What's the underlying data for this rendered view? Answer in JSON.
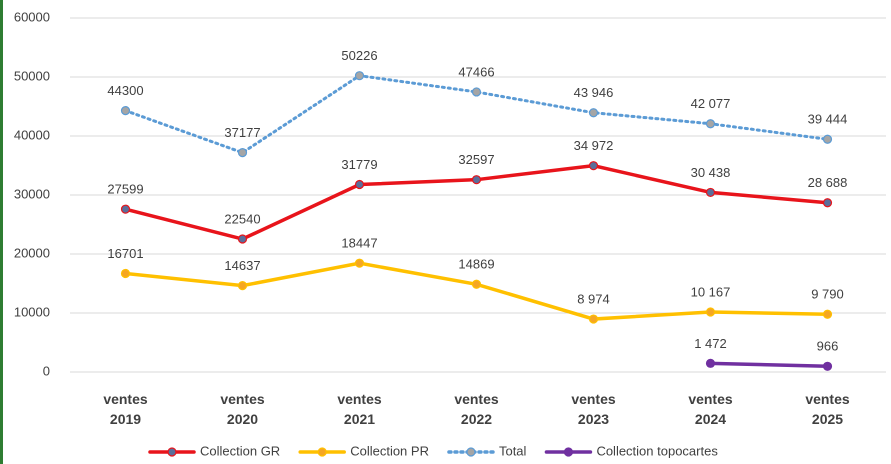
{
  "chart_data": {
    "type": "line",
    "categories": [
      "ventes 2019",
      "ventes 2020",
      "ventes 2021",
      "ventes 2022",
      "ventes 2023",
      "ventes 2024",
      "ventes 2025"
    ],
    "series": [
      {
        "name": "Collection GR",
        "color": "#e8141b",
        "marker_color": "#5b6e9a",
        "dash": "solid",
        "values": [
          27599,
          22540,
          31779,
          32597,
          34972,
          30438,
          28688
        ],
        "value_labels": [
          "27599",
          "22540",
          "31779",
          "32597",
          "34 972",
          "30 438",
          "28 688"
        ]
      },
      {
        "name": "Collection PR",
        "color": "#ffc000",
        "marker_color": "#f5a623",
        "dash": "solid",
        "values": [
          16701,
          14637,
          18447,
          14869,
          8974,
          10167,
          9790
        ],
        "value_labels": [
          "16701",
          "14637",
          "18447",
          "14869",
          "8 974",
          "10 167",
          "9 790"
        ]
      },
      {
        "name": "Total",
        "color": "#5b9bd5",
        "marker_color": "#a5a5a5",
        "dash": "dotted",
        "values": [
          44300,
          37177,
          50226,
          47466,
          43946,
          42077,
          39444
        ],
        "value_labels": [
          "44300",
          "37177",
          "50226",
          "47466",
          "43 946",
          "42 077",
          "39 444"
        ]
      },
      {
        "name": "Collection topocartes",
        "color": "#7030a0",
        "marker_color": "#7030a0",
        "dash": "solid",
        "values": [
          null,
          null,
          null,
          null,
          null,
          1472,
          966
        ],
        "value_labels": [
          null,
          null,
          null,
          null,
          null,
          "1 472",
          "966"
        ]
      }
    ],
    "ylim": [
      0,
      60000
    ],
    "yticks": [
      0,
      10000,
      20000,
      30000,
      40000,
      50000,
      60000
    ],
    "grid": true,
    "legend": "bottom"
  }
}
